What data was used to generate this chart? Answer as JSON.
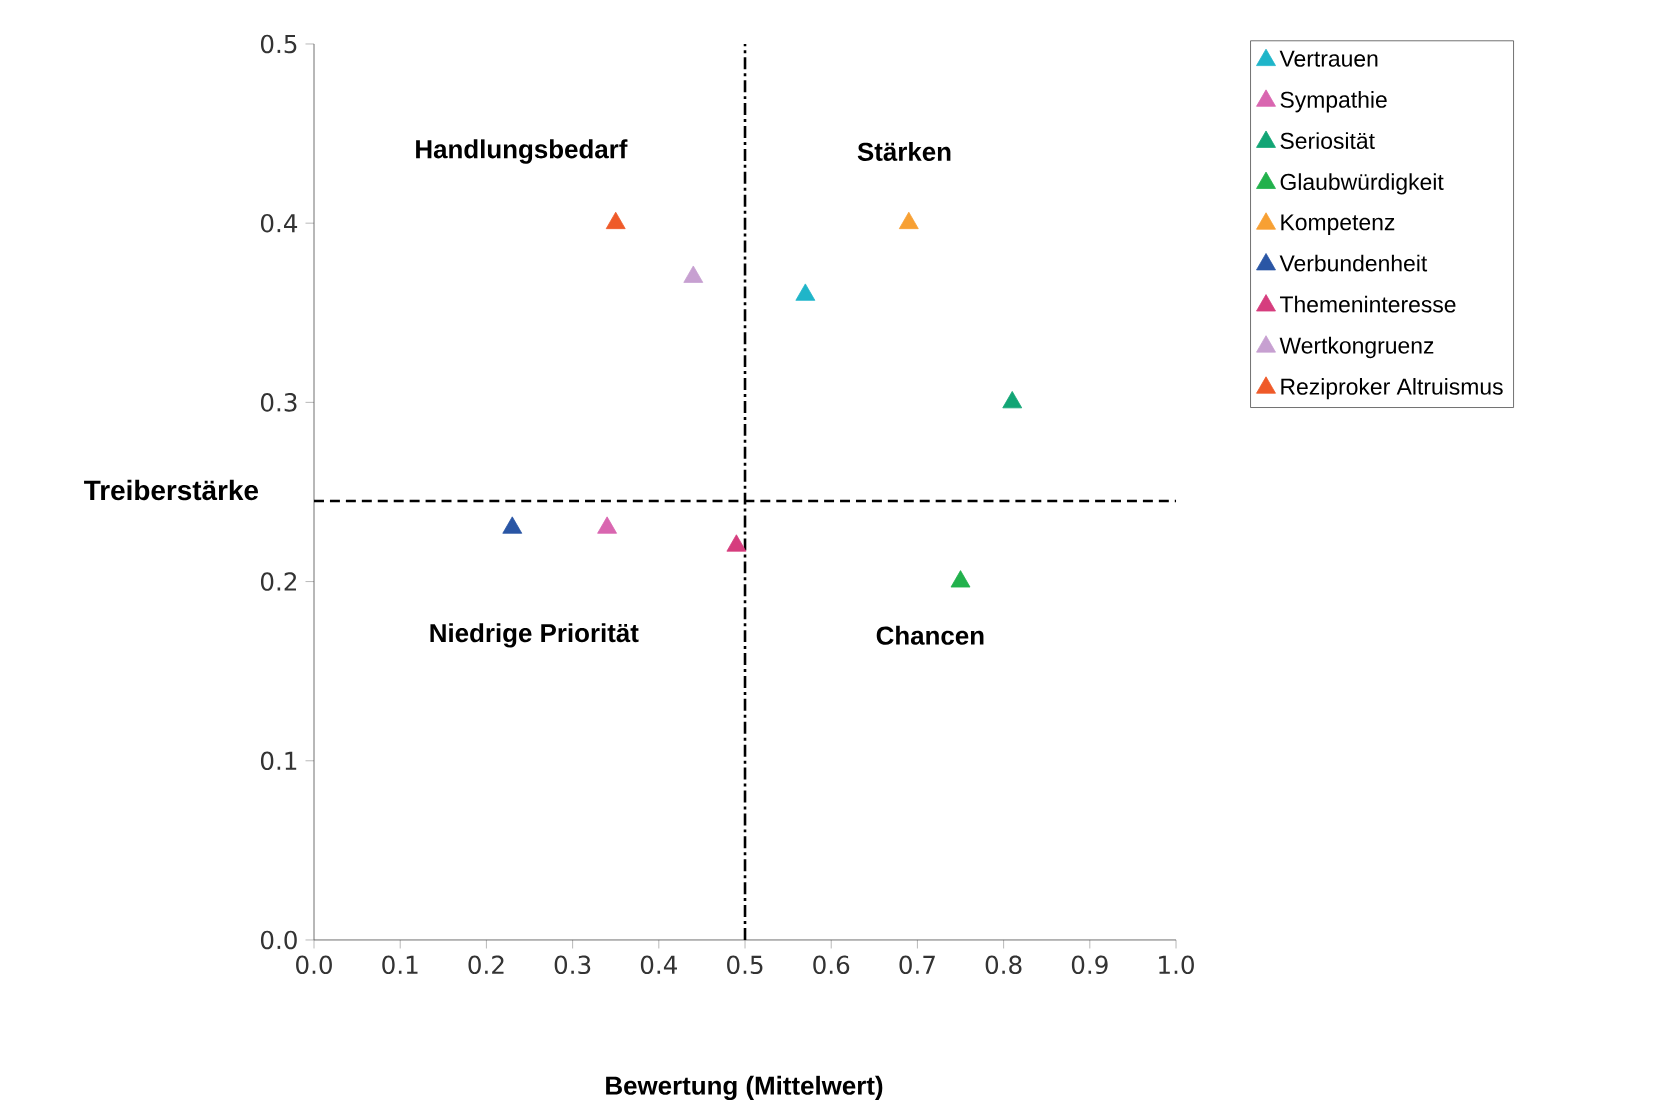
{
  "chart_data": {
    "type": "scatter",
    "xlabel": "Bewertung (Mittelwert)",
    "ylabel": "Treiberstärke",
    "xlim": [
      0,
      1
    ],
    "ylim": [
      0,
      0.5
    ],
    "xticks": [
      {
        "value": 0,
        "label": "0.0"
      },
      0.1,
      0.2,
      0.3,
      0.4,
      0.5,
      0.6,
      0.7,
      0.8,
      0.9,
      {
        "value": 1,
        "label": "1.0"
      }
    ],
    "yticks": [
      {
        "value": 0,
        "label": "0.0"
      },
      0.1,
      0.2,
      0.3,
      0.4,
      0.5
    ],
    "marker": "triangle",
    "legend": "right",
    "grid": false,
    "series": [
      {
        "name": "Vertrauen",
        "color": "#1fb5c9",
        "x": [
          0.57
        ],
        "values": [
          0.36
        ]
      },
      {
        "name": "Sympathie",
        "color": "#d966b0",
        "x": [
          0.34
        ],
        "values": [
          0.23
        ]
      },
      {
        "name": "Seriosität",
        "color": "#12a575",
        "x": [
          0.81
        ],
        "values": [
          0.3
        ]
      },
      {
        "name": "Glaubwürdigkeit",
        "color": "#22b14c",
        "x": [
          0.75
        ],
        "values": [
          0.2
        ]
      },
      {
        "name": "Kompetenz",
        "color": "#f7a033",
        "x": [
          0.69
        ],
        "values": [
          0.4
        ]
      },
      {
        "name": "Verbundenheit",
        "color": "#2a56a5",
        "x": [
          0.23
        ],
        "values": [
          0.23
        ]
      },
      {
        "name": "Themeninteresse",
        "color": "#d63d7e",
        "x": [
          0.49
        ],
        "values": [
          0.22
        ]
      },
      {
        "name": "Wertkongruenz",
        "color": "#c7a0d1",
        "x": [
          0.44
        ],
        "values": [
          0.37
        ]
      },
      {
        "name": "Reziproker Altruismus",
        "color": "#ef5a29",
        "x": [
          0.35
        ],
        "values": [
          0.4
        ]
      }
    ],
    "ref_lines": [
      {
        "axis": "x",
        "value": 0.5,
        "color": "#000000",
        "line_style": "dashdot"
      },
      {
        "axis": "y",
        "value": 0.245,
        "color": "#000000",
        "line_style": "dashed"
      }
    ],
    "annotations": [
      "Handlungsbedarf",
      "Stärken",
      "Niedrige Priorität",
      "Chancen"
    ]
  }
}
